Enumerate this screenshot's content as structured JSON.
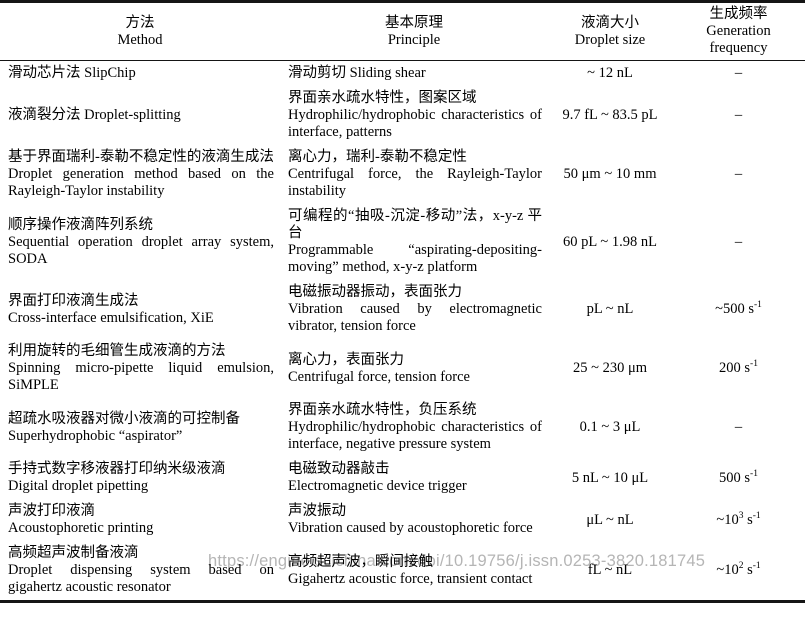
{
  "colors": {
    "text": "#000000",
    "border": "#151515",
    "watermark_gray": "#b5b5b5",
    "background": "#ffffff"
  },
  "watermark": "https://engine.scichina.com/doi/10.19756/j.issn.0253-3820.181745",
  "table": {
    "headers": [
      {
        "zh": "方法",
        "en": "Method"
      },
      {
        "zh": "基本原理",
        "en": "Principle"
      },
      {
        "zh": "液滴大小",
        "en": "Droplet size"
      },
      {
        "zh": "生成频率",
        "en": "Generation frequency"
      }
    ],
    "rows": [
      {
        "method_zh": "滑动芯片法 SlipChip",
        "method_en": "",
        "principle_zh": "滑动剪切 Sliding shear",
        "principle_en": "",
        "size": "~ 12 nL",
        "freq": [
          "–"
        ]
      },
      {
        "method_zh": "液滴裂分法 Droplet-splitting",
        "method_en": "",
        "principle_zh": "界面亲水疏水特性，图案区域",
        "principle_en": "Hydrophilic/hydrophobic characteristics of interface, patterns",
        "size": "9.7 fL ~ 83.5 pL",
        "freq": [
          "–"
        ]
      },
      {
        "method_zh": "基于界面瑞利-泰勒不稳定性的液滴生成法",
        "method_en": "Droplet generation method based on the Rayleigh-Taylor instability",
        "principle_zh": "离心力，瑞利-泰勒不稳定性",
        "principle_en": "Centrifugal force, the Rayleigh-Taylor instability",
        "size": "50 μm ~ 10 mm",
        "freq": [
          "–"
        ]
      },
      {
        "method_zh": "顺序操作液滴阵列系统",
        "method_en": "Sequential operation droplet array system, SODA",
        "principle_zh": "可编程的“抽吸-沉淀-移动”法，x-y-z 平台",
        "principle_en": "Programmable “aspirating-depositing-moving” method, x-y-z platform",
        "size": "60 pL ~ 1.98 nL",
        "freq": [
          "–"
        ]
      },
      {
        "method_zh": "界面打印液滴生成法",
        "method_en": "Cross-interface emulsification, XiE",
        "principle_zh": "电磁振动器振动，表面张力",
        "principle_en": "Vibration caused by electromagnetic vibrator, tension force",
        "size": "pL ~ nL",
        "freq": [
          "~500 s",
          "^-1"
        ]
      },
      {
        "method_zh": "利用旋转的毛细管生成液滴的方法",
        "method_en": "Spinning micro-pipette liquid emulsion, SiMPLE",
        "principle_zh": "离心力，表面张力",
        "principle_en": "Centrifugal force, tension force",
        "size": "25 ~ 230 μm",
        "freq": [
          "200 s",
          "^-1"
        ]
      },
      {
        "method_zh": "超疏水吸液器对微小液滴的可控制备",
        "method_en": "Superhydrophobic “aspirator”",
        "principle_zh": "界面亲水疏水特性，负压系统",
        "principle_en": "Hydrophilic/hydrophobic characteristics of interface, negative pressure system",
        "size": "0.1 ~ 3 μL",
        "freq": [
          "–"
        ]
      },
      {
        "method_zh": "手持式数字移液器打印纳米级液滴",
        "method_en": "Digital droplet pipetting",
        "principle_zh": "电磁致动器敲击",
        "principle_en": "Electromagnetic device trigger",
        "size": "5 nL ~ 10 μL",
        "freq": [
          "500 s",
          "^-1"
        ]
      },
      {
        "method_zh": "声波打印液滴",
        "method_en": "Acoustophoretic printing",
        "principle_zh": "声波振动",
        "principle_en": "Vibration caused by acoustophoretic force",
        "size": "μL ~ nL",
        "freq": [
          "~10",
          "^3",
          " s",
          "^-1"
        ]
      },
      {
        "method_zh": "高频超声波制备液滴",
        "method_en": "Droplet dispensing system based on gigahertz acoustic resonator",
        "principle_zh": "高频超声波，瞬间接触",
        "principle_en": "Gigahertz acoustic force, transient contact",
        "size": "fL ~ nL",
        "freq": [
          "~10",
          "^2",
          " s",
          "^-1"
        ]
      }
    ]
  }
}
